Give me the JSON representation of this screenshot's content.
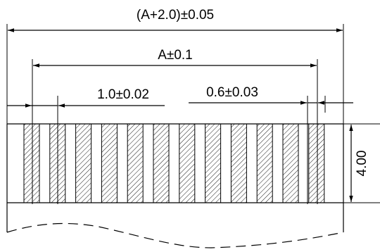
{
  "drawing": {
    "dimensions": {
      "overall_width": "(A+2.0)±0.05",
      "pitch_span": "A±0.1",
      "pitch": "1.0±0.02",
      "pad_width": "0.6±0.03",
      "height": "4.00"
    },
    "pad_count": 12
  }
}
